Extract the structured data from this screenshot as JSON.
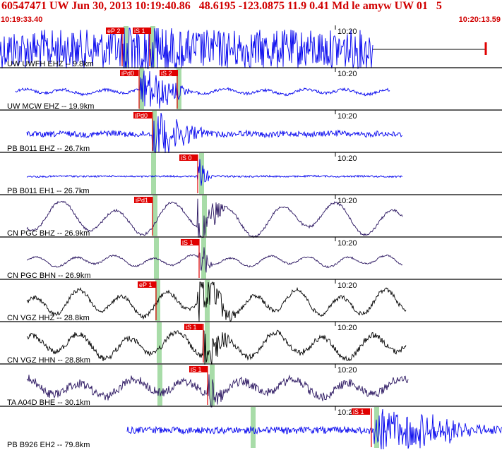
{
  "header": {
    "title": "60547471 UW Jun 30, 2013 10:19:40.86   48.6195 -123.0875 11.9 0.41 Md le amyw UW 01   5",
    "time_start": "10:19:33.40",
    "time_end": "10:20:13.59"
  },
  "colors": {
    "header_red": "#d00000",
    "pick_red": "#e00000",
    "blue_trace": "#0000ee",
    "purple_trace": "#2a1560",
    "black_trace": "#000000",
    "green_band": "#a8dca8"
  },
  "tick_label": "10:20",
  "traces": [
    {
      "label": "UW UWFH EHZ -- 9.8km",
      "picks": [
        "eP 2",
        "iS 1"
      ],
      "color": "blue"
    },
    {
      "label": "UW MCW EHZ -- 19.9km",
      "picks": [
        "iPd0",
        "iS 2"
      ],
      "color": "blue"
    },
    {
      "label": "PB B011 EHZ -- 26.7km",
      "picks": [
        "iPd0"
      ],
      "color": "blue"
    },
    {
      "label": "PB B011 EH1 -- 26.7km",
      "picks": [
        "iS 0"
      ],
      "color": "blue"
    },
    {
      "label": "CN PGC BHZ -- 26.9km",
      "picks": [
        "iPd1"
      ],
      "color": "purple"
    },
    {
      "label": "CN PGC BHN -- 26.9km",
      "picks": [
        "iS 1"
      ],
      "color": "purple"
    },
    {
      "label": "CN VGZ HHZ -- 28.8km",
      "picks": [
        "eP 1"
      ],
      "color": "black"
    },
    {
      "label": "CN VGZ HHN -- 28.8km",
      "picks": [
        "iS 1"
      ],
      "color": "black"
    },
    {
      "label": "TA A04D BHE -- 30.1km",
      "picks": [
        "iS 1"
      ],
      "color": "purple"
    },
    {
      "label": "PB B926 EH2 -- 79.8km",
      "picks": [
        "iS 1"
      ],
      "color": "blue"
    }
  ]
}
